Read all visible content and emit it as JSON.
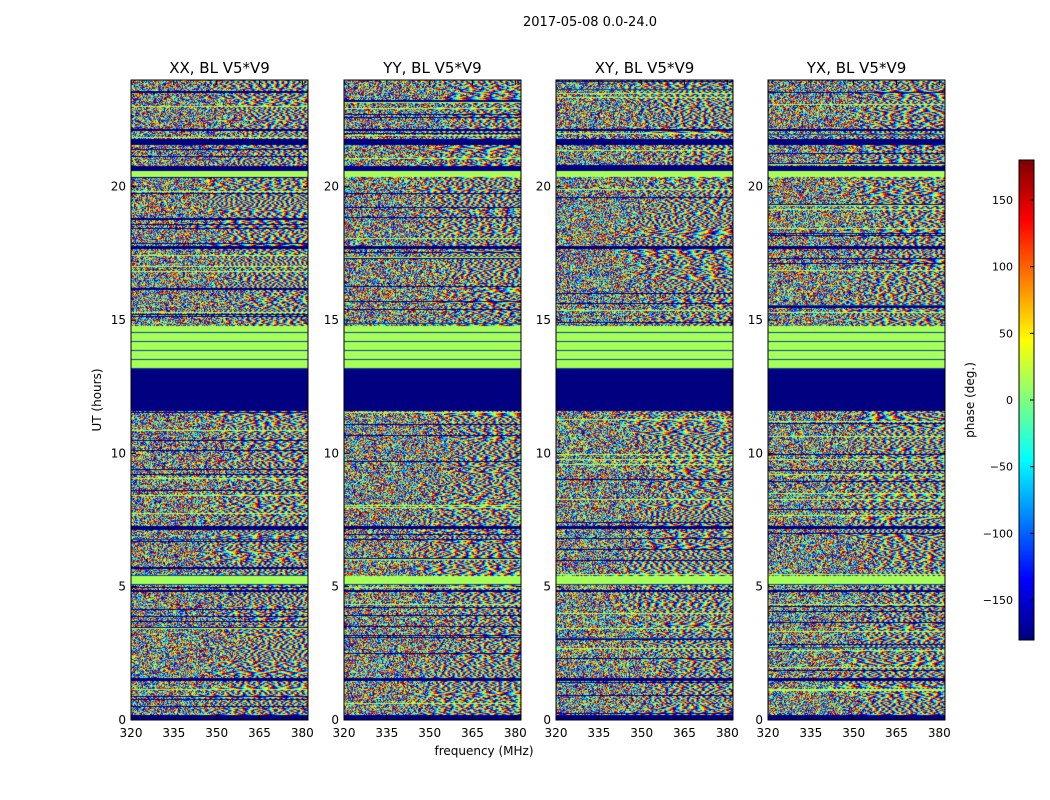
{
  "chart_data": {
    "type": "heatmap",
    "title": "2017-05-08 0.0-24.0",
    "xlabel": "frequency (MHz)",
    "ylabel": "UT (hours)",
    "xlim": [
      320,
      382
    ],
    "ylim": [
      0,
      24
    ],
    "xticks": [
      320,
      335,
      350,
      365,
      380
    ],
    "yticks": [
      0,
      5,
      10,
      15,
      20
    ],
    "panels": [
      {
        "id": "xx",
        "title": "XX, BL V5*V9",
        "seed": 11,
        "noise_variant": 0
      },
      {
        "id": "yy",
        "title": "YY, BL V5*V9",
        "seed": 23,
        "noise_variant": 1
      },
      {
        "id": "xy",
        "title": "XY, BL V5*V9",
        "seed": 37,
        "noise_variant": 2
      },
      {
        "id": "yx",
        "title": "YX, BL V5*V9",
        "seed": 53,
        "noise_variant": 3
      }
    ],
    "colorbar": {
      "label": "phase (deg.)",
      "range": [
        -180,
        180
      ],
      "ticks": [
        150,
        100,
        50,
        0,
        -50,
        -100,
        -150
      ],
      "tick_labels": [
        "150",
        "100",
        "50",
        "0",
        "−50",
        "−100",
        "−150"
      ],
      "colormap": "jet"
    },
    "bands_ut_hours": [
      {
        "from": 0.0,
        "to": 0.2,
        "kind": "flagged"
      },
      {
        "from": 11.6,
        "to": 13.2,
        "kind": "flagged"
      },
      {
        "from": 13.2,
        "to": 14.8,
        "kind": "constant"
      },
      {
        "from": 5.1,
        "to": 5.4,
        "kind": "constant"
      },
      {
        "from": 20.4,
        "to": 20.6,
        "kind": "constant"
      },
      {
        "from": 17.7,
        "to": 17.8,
        "kind": "flagged"
      },
      {
        "from": 20.6,
        "to": 20.8,
        "kind": "flagged"
      },
      {
        "from": 21.6,
        "to": 21.8,
        "kind": "flagged"
      },
      {
        "from": 22.1,
        "to": 22.2,
        "kind": "flagged"
      },
      {
        "from": 7.2,
        "to": 7.3,
        "kind": "flagged"
      },
      {
        "from": 4.8,
        "to": 4.9,
        "kind": "flagged"
      },
      {
        "from": 1.5,
        "to": 1.6,
        "kind": "flagged"
      }
    ]
  }
}
